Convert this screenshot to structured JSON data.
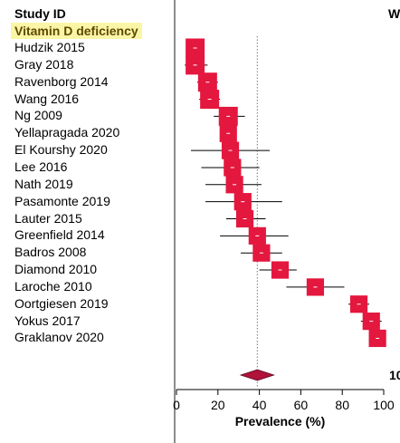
{
  "header": {
    "study_id_label": "Study ID",
    "subgroup_label": "Vitamin D deficiency",
    "right_cut_header": "W",
    "right_cut_pooled": "10"
  },
  "colors": {
    "box": "#e4173f",
    "diamond": "#b0123a",
    "ci_line": "#000000",
    "ref_line": "#777777",
    "subgroup_highlight": "#fbf5a6"
  },
  "chart_data": {
    "type": "forest",
    "xlabel": "Prevalence (%)",
    "xlim": [
      0,
      100
    ],
    "xticks": [
      0,
      20,
      40,
      60,
      80,
      100
    ],
    "reference_line": 39,
    "studies": [
      {
        "name": "Hudzik 2015",
        "estimate": 9,
        "ci": [
          7,
          11
        ],
        "weight": 5
      },
      {
        "name": "Gray 2018",
        "estimate": 9,
        "ci": [
          4,
          15
        ],
        "weight": 5
      },
      {
        "name": "Ravenborg 2014",
        "estimate": 15,
        "ci": [
          10,
          20
        ],
        "weight": 5
      },
      {
        "name": "Wang 2016",
        "estimate": 16,
        "ci": [
          11,
          21
        ],
        "weight": 5
      },
      {
        "name": "Ng 2009",
        "estimate": 25,
        "ci": [
          18,
          33
        ],
        "weight": 5
      },
      {
        "name": "Yellapragada 2020",
        "estimate": 25,
        "ci": [
          23,
          28
        ],
        "weight": 4
      },
      {
        "name": "El Kourshy 2020",
        "estimate": 26,
        "ci": [
          7,
          45
        ],
        "weight": 4
      },
      {
        "name": "Lee 2016",
        "estimate": 27,
        "ci": [
          12,
          40
        ],
        "weight": 4
      },
      {
        "name": "Nath 2019",
        "estimate": 28,
        "ci": [
          14,
          41
        ],
        "weight": 4
      },
      {
        "name": "Pasamonte 2019",
        "estimate": 32,
        "ci": [
          14,
          51
        ],
        "weight": 4
      },
      {
        "name": "Lauter 2015",
        "estimate": 33,
        "ci": [
          24,
          43
        ],
        "weight": 4
      },
      {
        "name": "Greenfield 2014",
        "estimate": 39,
        "ci": [
          21,
          54
        ],
        "weight": 4
      },
      {
        "name": "Badros 2008",
        "estimate": 41,
        "ci": [
          31,
          51
        ],
        "weight": 4
      },
      {
        "name": "Diamond 2010",
        "estimate": 50,
        "ci": [
          40,
          58
        ],
        "weight": 4
      },
      {
        "name": "Laroche 2010",
        "estimate": 67,
        "ci": [
          53,
          81
        ],
        "weight": 4
      },
      {
        "name": "Oortgiesen 2019",
        "estimate": 88,
        "ci": [
          83,
          93
        ],
        "weight": 4
      },
      {
        "name": "Yokus 2017",
        "estimate": 94,
        "ci": [
          89,
          99
        ],
        "weight": 4
      },
      {
        "name": "Graklanov 2020",
        "estimate": 97,
        "ci": [
          94,
          100
        ],
        "weight": 4
      }
    ],
    "pooled": {
      "estimate": 39,
      "ci": [
        31,
        47
      ]
    }
  }
}
